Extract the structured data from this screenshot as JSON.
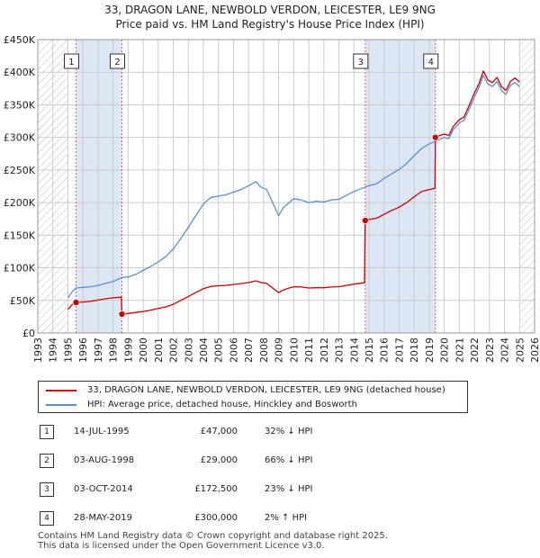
{
  "title": {
    "line1": "33, DRAGON LANE, NEWBOLD VERDON, LEICESTER, LE9 9NG",
    "line2": "Price paid vs. HM Land Registry's House Price Index (HPI)"
  },
  "colors": {
    "property": "#cc0000",
    "hpi": "#5b8fd1",
    "shade": "#dde6f4",
    "grid": "#cccccc",
    "hatch": "#bbbbbb"
  },
  "legend": {
    "property": "33, DRAGON LANE, NEWBOLD VERDON, LEICESTER, LE9 9NG (detached house)",
    "hpi": "HPI: Average price, detached house, Hinckley and Bosworth"
  },
  "sales": [
    {
      "num": "1",
      "date": "14-JUL-1995",
      "price": "£47,000",
      "hpi": "32% ↓ HPI"
    },
    {
      "num": "2",
      "date": "03-AUG-1998",
      "price": "£29,000",
      "hpi": "66% ↓ HPI"
    },
    {
      "num": "3",
      "date": "03-OCT-2014",
      "price": "£172,500",
      "hpi": "23% ↓ HPI"
    },
    {
      "num": "4",
      "date": "28-MAY-2019",
      "price": "£300,000",
      "hpi": "2% ↑ HPI"
    }
  ],
  "footer": {
    "line1": "Contains HM Land Registry data © Crown copyright and database right 2025.",
    "line2": "This data is licensed under the Open Government Licence v3.0."
  },
  "chart_data": {
    "type": "line",
    "xlim": [
      1993,
      2026
    ],
    "ylim": [
      0,
      450000
    ],
    "grid": true,
    "legend_position": "bottom",
    "x_ticks": [
      "1993",
      "1994",
      "1995",
      "1996",
      "1997",
      "1998",
      "1999",
      "2000",
      "2001",
      "2002",
      "2003",
      "2004",
      "2005",
      "2006",
      "2007",
      "2008",
      "2009",
      "2010",
      "2011",
      "2012",
      "2013",
      "2014",
      "2015",
      "2016",
      "2017",
      "2018",
      "2019",
      "2020",
      "2021",
      "2022",
      "2023",
      "2024",
      "2025",
      "2026"
    ],
    "y_ticks": [
      {
        "value": 0,
        "label": "£0"
      },
      {
        "value": 50000,
        "label": "£50K"
      },
      {
        "value": 100000,
        "label": "£100K"
      },
      {
        "value": 150000,
        "label": "£150K"
      },
      {
        "value": 200000,
        "label": "£200K"
      },
      {
        "value": 250000,
        "label": "£250K"
      },
      {
        "value": 300000,
        "label": "£300K"
      },
      {
        "value": 350000,
        "label": "£350K"
      },
      {
        "value": 400000,
        "label": "£400K"
      },
      {
        "value": 450000,
        "label": "£450K"
      }
    ],
    "hatched_ranges": [
      [
        1993,
        1995.0
      ],
      [
        2025.0,
        2026
      ]
    ],
    "shaded_ranges": [
      [
        1995.54,
        1998.59
      ],
      [
        2014.75,
        2019.41
      ]
    ],
    "sale_markers": [
      {
        "label": "1",
        "x": 1995.54,
        "y": 47000
      },
      {
        "label": "2",
        "x": 1998.59,
        "y": 29000
      },
      {
        "label": "3",
        "x": 2014.75,
        "y": 172500
      },
      {
        "label": "4",
        "x": 2019.41,
        "y": 300000
      }
    ],
    "series": [
      {
        "name": "HPI: Average price, detached house, Hinckley and Bosworth",
        "color": "#5b8fd1",
        "points": [
          [
            1995.0,
            54000
          ],
          [
            1995.3,
            64000
          ],
          [
            1995.54,
            69000
          ],
          [
            1996.0,
            70000
          ],
          [
            1996.5,
            71000
          ],
          [
            1997.0,
            73000
          ],
          [
            1997.5,
            76000
          ],
          [
            1998.0,
            79000
          ],
          [
            1998.59,
            85000
          ],
          [
            1999.0,
            86000
          ],
          [
            1999.5,
            90000
          ],
          [
            2000.0,
            96000
          ],
          [
            2000.5,
            102000
          ],
          [
            2001.0,
            109000
          ],
          [
            2001.5,
            117000
          ],
          [
            2002.0,
            129000
          ],
          [
            2002.5,
            145000
          ],
          [
            2003.0,
            162000
          ],
          [
            2003.5,
            180000
          ],
          [
            2004.0,
            198000
          ],
          [
            2004.5,
            208000
          ],
          [
            2005.0,
            210000
          ],
          [
            2005.5,
            212000
          ],
          [
            2006.0,
            216000
          ],
          [
            2006.5,
            220000
          ],
          [
            2007.0,
            226000
          ],
          [
            2007.5,
            232000
          ],
          [
            2007.8,
            224000
          ],
          [
            2008.2,
            220000
          ],
          [
            2008.6,
            200000
          ],
          [
            2009.0,
            180000
          ],
          [
            2009.3,
            192000
          ],
          [
            2009.7,
            200000
          ],
          [
            2010.0,
            206000
          ],
          [
            2010.5,
            204000
          ],
          [
            2011.0,
            200000
          ],
          [
            2011.5,
            202000
          ],
          [
            2012.0,
            201000
          ],
          [
            2012.5,
            204000
          ],
          [
            2013.0,
            205000
          ],
          [
            2013.5,
            211000
          ],
          [
            2014.0,
            217000
          ],
          [
            2014.75,
            224000
          ],
          [
            2015.0,
            226000
          ],
          [
            2015.5,
            229000
          ],
          [
            2016.0,
            237000
          ],
          [
            2016.5,
            244000
          ],
          [
            2017.0,
            251000
          ],
          [
            2017.5,
            260000
          ],
          [
            2018.0,
            272000
          ],
          [
            2018.5,
            283000
          ],
          [
            2019.0,
            290000
          ],
          [
            2019.41,
            294000
          ],
          [
            2019.7,
            297000
          ],
          [
            2020.0,
            300000
          ],
          [
            2020.3,
            298000
          ],
          [
            2020.6,
            312000
          ],
          [
            2021.0,
            322000
          ],
          [
            2021.3,
            326000
          ],
          [
            2021.6,
            340000
          ],
          [
            2022.0,
            362000
          ],
          [
            2022.3,
            376000
          ],
          [
            2022.6,
            395000
          ],
          [
            2022.9,
            382000
          ],
          [
            2023.2,
            378000
          ],
          [
            2023.5,
            386000
          ],
          [
            2023.8,
            372000
          ],
          [
            2024.1,
            366000
          ],
          [
            2024.4,
            380000
          ],
          [
            2024.7,
            384000
          ],
          [
            2025.0,
            378000
          ]
        ]
      },
      {
        "name": "33, DRAGON LANE, NEWBOLD VERDON, LEICESTER, LE9 9NG (detached house)",
        "color": "#cc0000",
        "points": [
          [
            1995.0,
            36000
          ],
          [
            1995.3,
            44000
          ],
          [
            1995.54,
            47000
          ],
          [
            1996.0,
            47500
          ],
          [
            1996.5,
            48500
          ],
          [
            1997.0,
            50500
          ],
          [
            1997.5,
            52500
          ],
          [
            1998.0,
            54000
          ],
          [
            1998.55,
            55000
          ],
          [
            1998.59,
            29000
          ],
          [
            1999.0,
            30000
          ],
          [
            1999.5,
            31500
          ],
          [
            2000.0,
            33000
          ],
          [
            2000.5,
            35000
          ],
          [
            2001.0,
            37500
          ],
          [
            2001.5,
            40000
          ],
          [
            2002.0,
            44000
          ],
          [
            2002.5,
            50000
          ],
          [
            2003.0,
            56000
          ],
          [
            2003.5,
            62000
          ],
          [
            2004.0,
            68000
          ],
          [
            2004.5,
            71500
          ],
          [
            2005.0,
            72500
          ],
          [
            2005.5,
            73000
          ],
          [
            2006.0,
            74500
          ],
          [
            2006.5,
            75800
          ],
          [
            2007.0,
            77500
          ],
          [
            2007.5,
            80000
          ],
          [
            2007.8,
            77500
          ],
          [
            2008.2,
            76000
          ],
          [
            2008.6,
            69000
          ],
          [
            2009.0,
            62000
          ],
          [
            2009.3,
            66000
          ],
          [
            2009.7,
            69000
          ],
          [
            2010.0,
            71000
          ],
          [
            2010.5,
            70500
          ],
          [
            2011.0,
            69000
          ],
          [
            2011.5,
            69500
          ],
          [
            2012.0,
            69500
          ],
          [
            2012.5,
            70500
          ],
          [
            2013.0,
            71000
          ],
          [
            2013.5,
            73000
          ],
          [
            2014.0,
            75000
          ],
          [
            2014.7,
            77000
          ],
          [
            2014.75,
            172500
          ],
          [
            2015.0,
            174000
          ],
          [
            2015.5,
            176000
          ],
          [
            2016.0,
            182000
          ],
          [
            2016.5,
            188000
          ],
          [
            2017.0,
            193000
          ],
          [
            2017.5,
            200000
          ],
          [
            2018.0,
            209000
          ],
          [
            2018.5,
            217000
          ],
          [
            2019.0,
            220000
          ],
          [
            2019.38,
            222000
          ],
          [
            2019.41,
            300000
          ],
          [
            2019.7,
            303000
          ],
          [
            2020.0,
            305000
          ],
          [
            2020.3,
            303000
          ],
          [
            2020.6,
            317000
          ],
          [
            2021.0,
            327000
          ],
          [
            2021.3,
            331000
          ],
          [
            2021.6,
            346000
          ],
          [
            2022.0,
            368000
          ],
          [
            2022.3,
            382000
          ],
          [
            2022.6,
            402000
          ],
          [
            2022.9,
            388000
          ],
          [
            2023.2,
            384000
          ],
          [
            2023.5,
            392000
          ],
          [
            2023.8,
            378000
          ],
          [
            2024.1,
            372000
          ],
          [
            2024.4,
            386000
          ],
          [
            2024.7,
            391000
          ],
          [
            2025.0,
            385000
          ]
        ]
      }
    ]
  }
}
